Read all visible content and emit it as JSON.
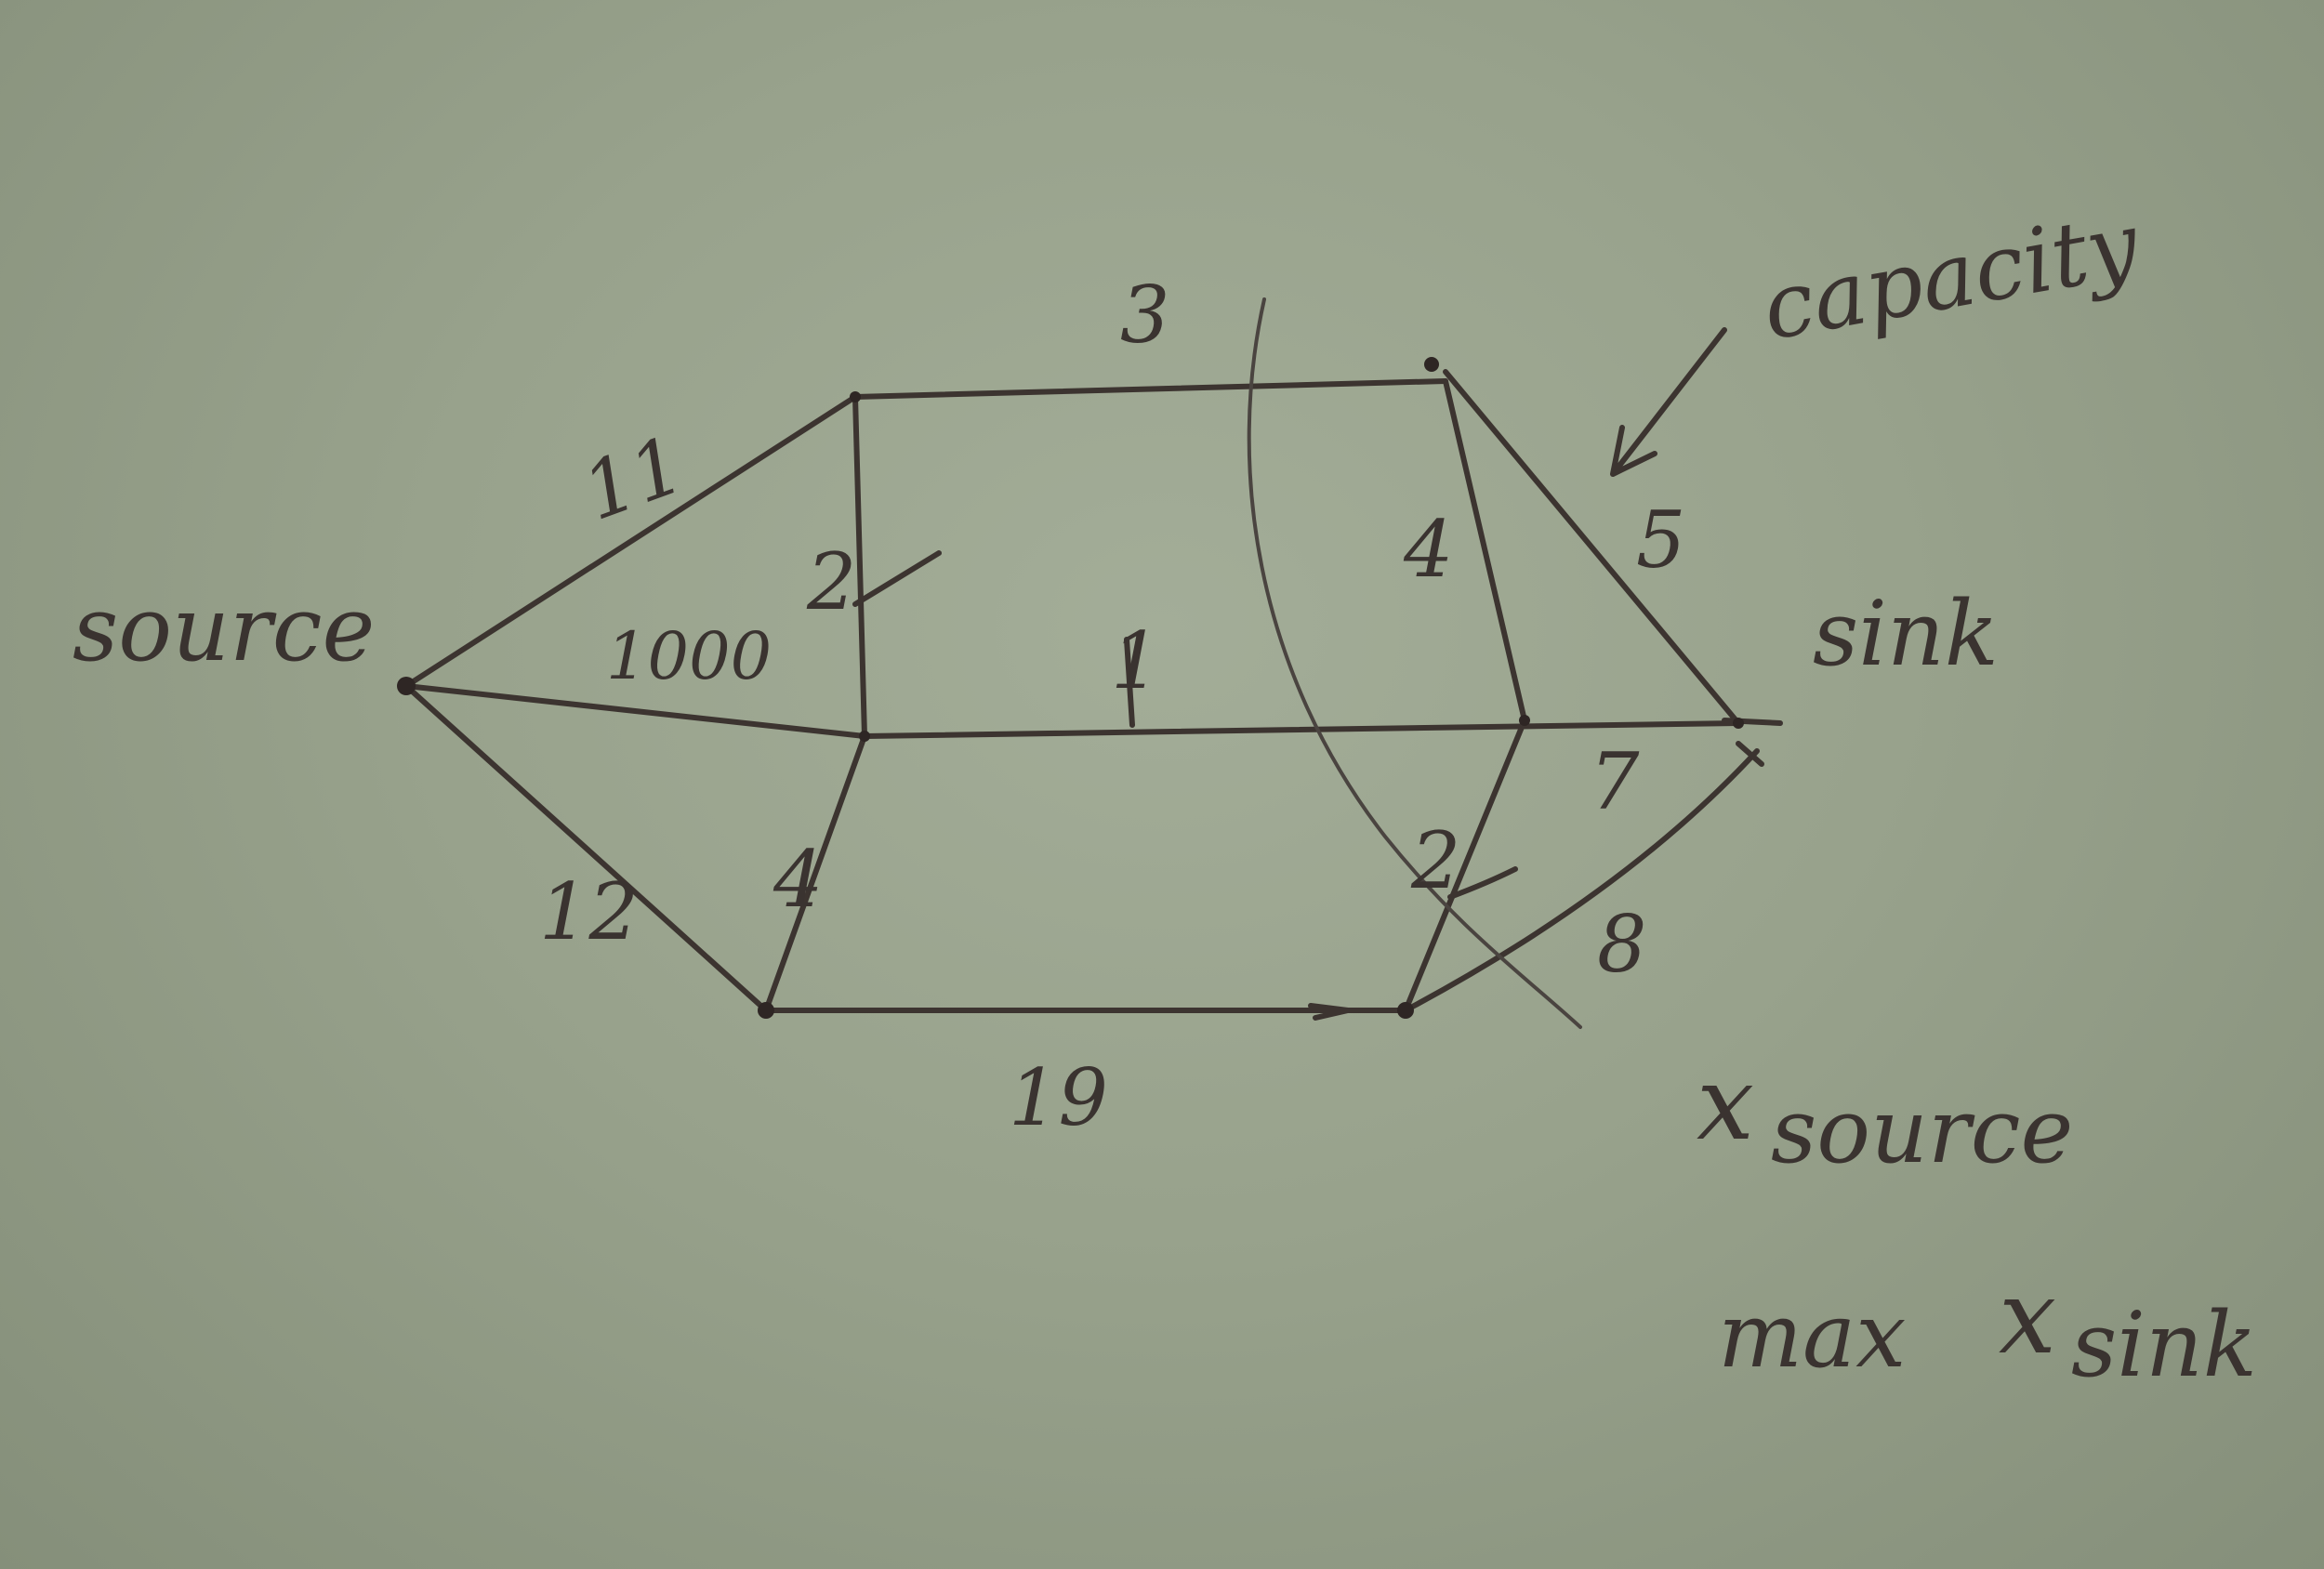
{
  "diagram": {
    "type": "flow-network",
    "colors": {
      "paper": "#98a28c",
      "ink": "#3c3430"
    },
    "nodes": [
      "source",
      "top-left",
      "middle-center",
      "bottom-left",
      "top-right",
      "middle-right",
      "bottom-right",
      "sink"
    ],
    "labels": {
      "source": "source",
      "sink": "sink",
      "capacity": "capacity",
      "x_source": "x",
      "x_source_sub": "source",
      "max_text": "max",
      "x_sink": "x",
      "x_sink_sub": "sink"
    },
    "edges": [
      {
        "id": "source-topleft",
        "capacity": "11"
      },
      {
        "id": "source-middle",
        "capacity": "1000"
      },
      {
        "id": "source-bottomleft",
        "capacity": "12"
      },
      {
        "id": "top-edge",
        "capacity": "3"
      },
      {
        "id": "topleft-middle",
        "capacity": "2"
      },
      {
        "id": "middle-middleright",
        "capacity": "1"
      },
      {
        "id": "middle-bottomleft",
        "capacity": "4"
      },
      {
        "id": "bottom-edge",
        "capacity": "19"
      },
      {
        "id": "topright-middleright",
        "capacity": "4"
      },
      {
        "id": "topright-sink",
        "capacity": "5"
      },
      {
        "id": "middleright-sink",
        "capacity": "7"
      },
      {
        "id": "middleright-bottomright",
        "capacity": "2"
      },
      {
        "id": "bottomright-sink",
        "capacity": "8"
      }
    ]
  }
}
